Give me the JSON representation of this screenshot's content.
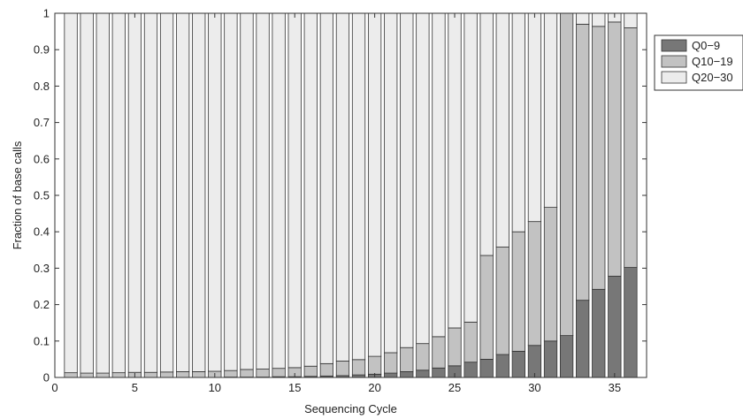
{
  "chart_data": {
    "type": "bar",
    "stacked": true,
    "title": "",
    "xlabel": "Sequencing Cycle",
    "ylabel": "Fraction of base calls",
    "xlim": [
      0,
      37
    ],
    "ylim": [
      0,
      1
    ],
    "x_ticks": [
      0,
      5,
      10,
      15,
      20,
      25,
      30,
      35
    ],
    "y_ticks": [
      0,
      0.1,
      0.2,
      0.3,
      0.4,
      0.5,
      0.6,
      0.7,
      0.8,
      0.9,
      1
    ],
    "grid": false,
    "legend_position": "outside-right-top",
    "x": [
      1,
      2,
      3,
      4,
      5,
      6,
      7,
      8,
      9,
      10,
      11,
      12,
      13,
      14,
      15,
      16,
      17,
      18,
      19,
      20,
      21,
      22,
      23,
      24,
      25,
      26,
      27,
      28,
      29,
      30,
      31,
      32,
      33,
      34,
      35,
      36
    ],
    "series": [
      {
        "name": "Q0−9",
        "color": "#777777",
        "values": [
          0.0,
          0.0,
          0.0,
          0.0,
          0.0,
          0.0,
          0.0,
          0.0,
          0.0,
          0.0,
          0.001,
          0.001,
          0.001,
          0.002,
          0.002,
          0.003,
          0.004,
          0.005,
          0.007,
          0.009,
          0.012,
          0.016,
          0.02,
          0.026,
          0.032,
          0.042,
          0.05,
          0.063,
          0.072,
          0.088,
          0.1,
          0.115,
          0.212,
          0.242,
          0.278,
          0.302
        ]
      },
      {
        "name": "Q10−19",
        "color": "#c2c2c2",
        "values": [
          0.013,
          0.012,
          0.012,
          0.013,
          0.014,
          0.014,
          0.015,
          0.016,
          0.016,
          0.017,
          0.018,
          0.021,
          0.022,
          0.023,
          0.025,
          0.028,
          0.034,
          0.04,
          0.042,
          0.049,
          0.056,
          0.066,
          0.073,
          0.086,
          0.104,
          0.11,
          0.285,
          0.295,
          0.328,
          0.34,
          0.367,
          0.885,
          0.758,
          0.722,
          0.698,
          0.658
        ]
      },
      {
        "name": "Q20−30",
        "color": "#ececec",
        "values": [
          0.987,
          0.988,
          0.988,
          0.987,
          0.986,
          0.986,
          0.985,
          0.984,
          0.984,
          0.983,
          0.981,
          0.978,
          0.977,
          0.975,
          0.973,
          0.969,
          0.962,
          0.955,
          0.951,
          0.942,
          0.932,
          0.918,
          0.907,
          0.888,
          0.864,
          0.848,
          0.665,
          0.642,
          0.6,
          0.572,
          0.533,
          0.0,
          0.03,
          0.036,
          0.024,
          0.04
        ]
      }
    ]
  }
}
